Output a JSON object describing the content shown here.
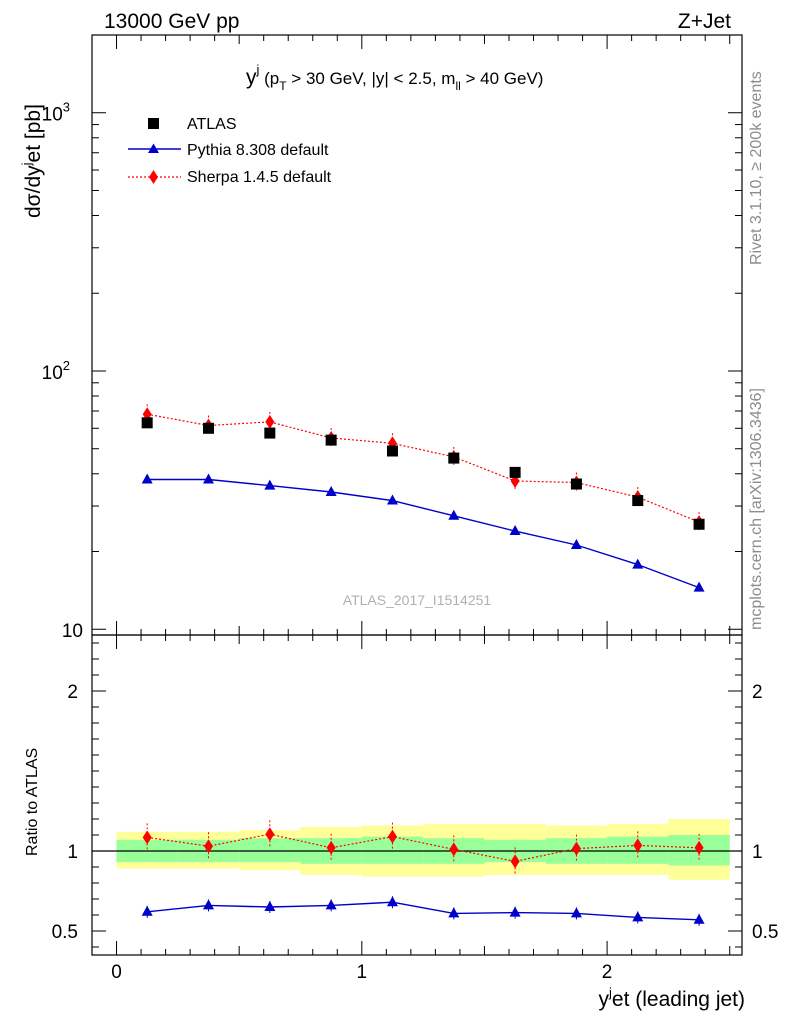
{
  "header": {
    "left": "13000 GeV pp",
    "right": "Z+Jet"
  },
  "side_labels": {
    "rivet": "Rivet 3.1.10, ≥ 200k events",
    "mcplots": "mcplots.cern.ch [arXiv:1306.3436]"
  },
  "plot_title": {
    "main": "y",
    "sup": "j",
    "cuts_a": " (p",
    "cuts_sub_t": "T",
    "cuts_b": " > 30 GeV, |y| < 2.5, m",
    "cuts_sub_ll": "ll",
    "cuts_c": " > 40 GeV)"
  },
  "ylabel_main": {
    "a": "dσ/dy",
    "sup1": "j",
    "b": "et [pb]"
  },
  "ylabel_ratio": "Ratio to ATLAS",
  "xlabel": {
    "a": "y",
    "sup": "j",
    "b": "et (leading jet)"
  },
  "watermark": "ATLAS_2017_I1514251",
  "colors": {
    "data": "#000000",
    "pythia": "#0000cc",
    "sherpa": "#ff0000",
    "band_inner": "#99ff99",
    "band_outer": "#ffff99"
  },
  "chart_data": [
    {
      "type": "scatter",
      "panel": "main",
      "y_scale": "log",
      "ylim": [
        9.5,
        2000
      ],
      "xlim": [
        -0.1,
        2.55
      ],
      "y_ticks": [
        {
          "value": 10,
          "label": "10"
        },
        {
          "value": 100,
          "label": "10",
          "sup": "2"
        },
        {
          "value": 1000,
          "label": "10",
          "sup": "3"
        }
      ],
      "x": [
        0.125,
        0.375,
        0.625,
        0.875,
        1.125,
        1.375,
        1.625,
        1.875,
        2.125,
        2.375
      ],
      "series": [
        {
          "name": "ATLAS",
          "marker": "square",
          "values": [
            63,
            60,
            57.5,
            54,
            49,
            46,
            40.5,
            36.5,
            31.5,
            25.5
          ]
        },
        {
          "name": "Pythia 8.308 default",
          "marker": "triangle",
          "values": [
            38,
            38,
            36,
            34,
            31.5,
            27.5,
            24,
            21.2,
            17.8,
            14.5
          ]
        },
        {
          "name": "Sherpa 1.4.5 default",
          "marker": "diamond",
          "values": [
            68,
            61.5,
            63.5,
            55,
            52.5,
            46.5,
            37.5,
            37,
            32.5,
            26
          ]
        }
      ],
      "legend_position": "top-left"
    },
    {
      "type": "line",
      "panel": "ratio",
      "ylim": [
        0.35,
        2.35
      ],
      "xlim": [
        -0.1,
        2.55
      ],
      "y_ticks": [
        {
          "value": 0.5,
          "label": "0.5"
        },
        {
          "value": 1,
          "label": "1"
        },
        {
          "value": 2,
          "label": "2"
        }
      ],
      "x_ticks": [
        {
          "value": 0,
          "label": "0"
        },
        {
          "value": 1,
          "label": "1"
        },
        {
          "value": 2,
          "label": "2"
        }
      ],
      "x": [
        0.125,
        0.375,
        0.625,
        0.875,
        1.125,
        1.375,
        1.625,
        1.875,
        2.125,
        2.375
      ],
      "bands": {
        "inner_low": [
          0.93,
          0.93,
          0.93,
          0.92,
          0.92,
          0.92,
          0.93,
          0.92,
          0.92,
          0.91
        ],
        "inner_high": [
          1.07,
          1.07,
          1.08,
          1.08,
          1.09,
          1.08,
          1.07,
          1.08,
          1.09,
          1.1
        ],
        "outer_low": [
          0.89,
          0.89,
          0.88,
          0.85,
          0.84,
          0.84,
          0.85,
          0.85,
          0.85,
          0.82
        ],
        "outer_high": [
          1.12,
          1.12,
          1.13,
          1.15,
          1.16,
          1.17,
          1.17,
          1.16,
          1.17,
          1.2
        ]
      },
      "series": [
        {
          "name": "Pythia 8.308 default",
          "marker": "triangle",
          "values": [
            0.62,
            0.66,
            0.65,
            0.66,
            0.68,
            0.61,
            0.615,
            0.61,
            0.585,
            0.57
          ]
        },
        {
          "name": "Sherpa 1.4.5 default",
          "marker": "diamond",
          "values": [
            1.085,
            1.03,
            1.105,
            1.02,
            1.09,
            1.01,
            0.935,
            1.015,
            1.035,
            1.02
          ]
        }
      ],
      "reference_line": 1
    }
  ]
}
